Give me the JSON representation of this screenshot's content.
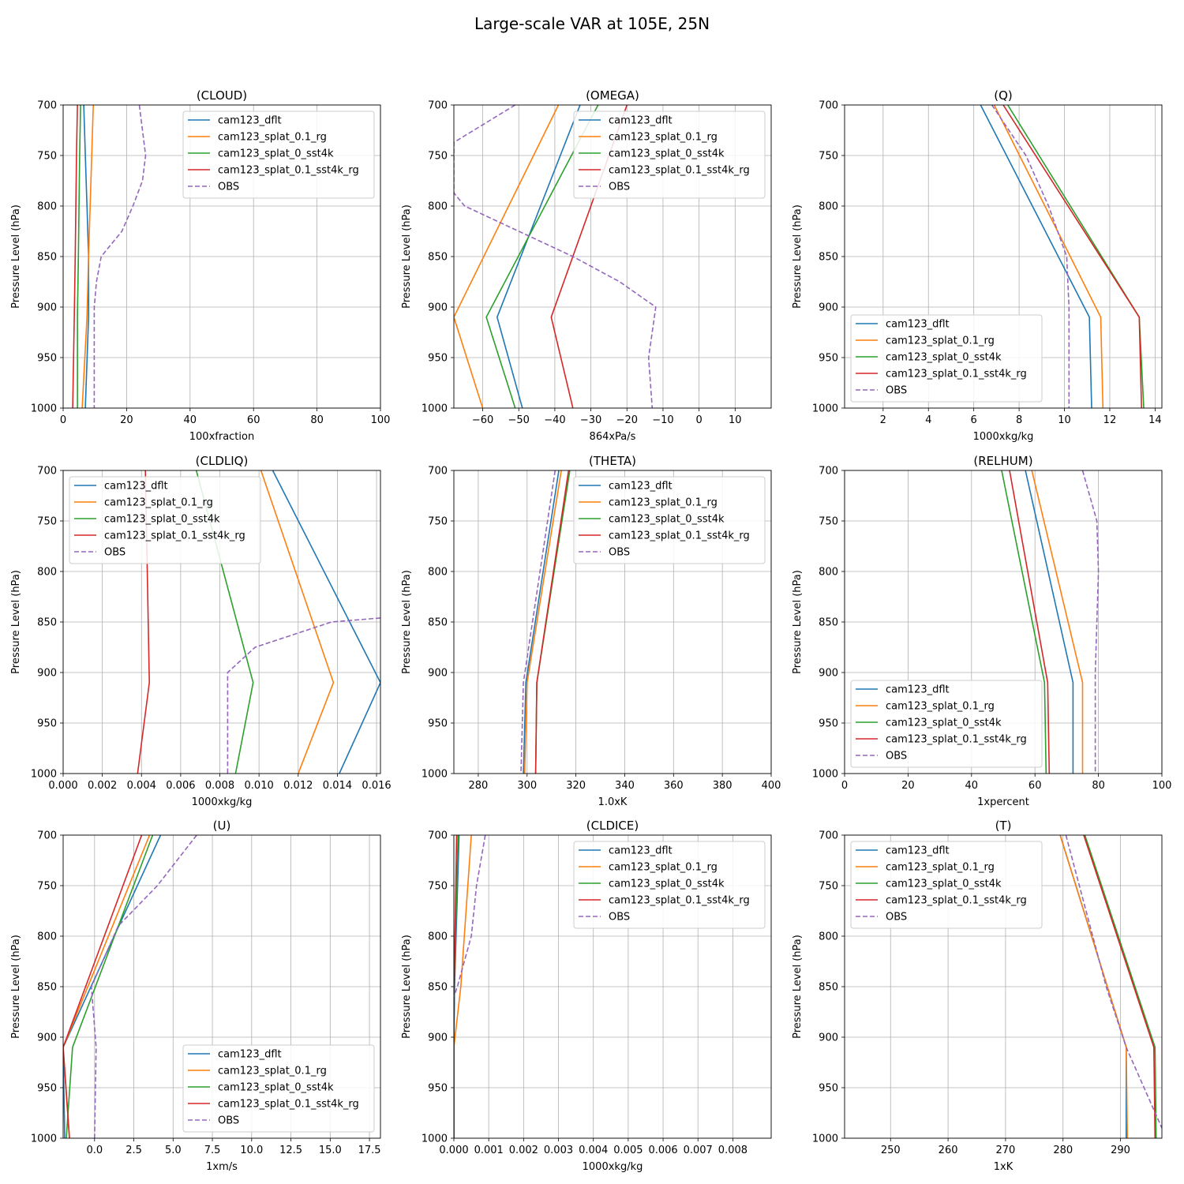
{
  "figure_title": "Large-scale VAR at 105E, 25N",
  "colors": {
    "cam123_dflt": "#1f77b4",
    "cam123_splat_0.1_rg": "#ff7f0e",
    "cam123_splat_0_sst4k": "#2ca02c",
    "cam123_splat_0.1_sst4k_rg": "#d62728",
    "OBS": "#9467bd"
  },
  "chart_data": [
    {
      "type": "line",
      "title": "(CLOUD)",
      "xlabel": "100xfraction",
      "ylabel": "Pressure Level (hPa)",
      "xlim": [
        0,
        100
      ],
      "xticks": [
        "0",
        "20",
        "40",
        "60",
        "80",
        "100"
      ],
      "xtick_values": [
        0,
        20,
        40,
        60,
        80,
        100
      ],
      "ylim": [
        700,
        1000
      ],
      "yticks": [
        "700",
        "750",
        "800",
        "850",
        "900",
        "950",
        "1000"
      ],
      "legend": "upper-right",
      "levels": [
        700,
        750,
        800,
        850,
        910,
        1000
      ],
      "series": [
        {
          "name": "cam123_dflt",
          "x": [
            6.5,
            7.0,
            7.5,
            8.0,
            8.0,
            7.0
          ]
        },
        {
          "name": "cam123_splat_0.1_rg",
          "x": [
            9.5,
            9.0,
            8.5,
            8.0,
            7.5,
            6.0
          ]
        },
        {
          "name": "cam123_splat_0_sst4k",
          "x": [
            5.5,
            5.2,
            5.0,
            4.8,
            4.5,
            4.5
          ]
        },
        {
          "name": "cam123_splat_0.1_sst4k_rg",
          "x": [
            4.5,
            4.2,
            4.0,
            3.8,
            3.5,
            3.0
          ]
        },
        {
          "name": "OBS",
          "dashed": true,
          "levels": [
            700,
            750,
            775,
            800,
            825,
            850,
            875,
            900,
            1000
          ],
          "x": [
            24,
            26,
            25,
            22,
            18.5,
            12,
            10.5,
            9.8,
            9.8
          ]
        }
      ]
    },
    {
      "type": "line",
      "title": "(OMEGA)",
      "xlabel": "864xPa/s",
      "ylabel": "Pressure Level (hPa)",
      "xlim": [
        -68,
        20
      ],
      "xticks": [
        "−60",
        "−50",
        "−40",
        "−30",
        "−20",
        "−10",
        "0",
        "10"
      ],
      "xtick_values": [
        -60,
        -50,
        -40,
        -30,
        -20,
        -10,
        0,
        10
      ],
      "ylim": [
        700,
        1000
      ],
      "yticks": [
        "700",
        "750",
        "800",
        "850",
        "900",
        "950",
        "1000"
      ],
      "legend": "upper-right",
      "levels": [
        700,
        910,
        1000
      ],
      "series": [
        {
          "name": "cam123_dflt",
          "x": [
            -33,
            -56,
            -49
          ]
        },
        {
          "name": "cam123_splat_0.1_rg",
          "x": [
            -39,
            -68,
            -60
          ]
        },
        {
          "name": "cam123_splat_0_sst4k",
          "x": [
            -28,
            -59,
            -51
          ]
        },
        {
          "name": "cam123_splat_0.1_sst4k_rg",
          "x": [
            -20,
            -41,
            -35
          ]
        },
        {
          "name": "OBS",
          "dashed": true,
          "levels": [
            700,
            737,
            787,
            800,
            850,
            875,
            900,
            950,
            1000
          ],
          "x": [
            -51,
            -68,
            -68,
            -65,
            -35,
            -22,
            -12,
            -14,
            -13
          ]
        }
      ]
    },
    {
      "type": "line",
      "title": "(Q)",
      "xlabel": "1000xkg/kg",
      "ylabel": "Pressure Level (hPa)",
      "xlim": [
        0.3,
        14.3
      ],
      "xticks": [
        "2",
        "4",
        "6",
        "8",
        "10",
        "12",
        "14"
      ],
      "xtick_values": [
        2,
        4,
        6,
        8,
        10,
        12,
        14
      ],
      "ylim": [
        700,
        1000
      ],
      "yticks": [
        "700",
        "750",
        "800",
        "850",
        "900",
        "950",
        "1000"
      ],
      "legend": "lower-left",
      "levels": [
        700,
        910,
        1000
      ],
      "series": [
        {
          "name": "cam123_dflt",
          "x": [
            6.3,
            11.1,
            11.2
          ]
        },
        {
          "name": "cam123_splat_0.1_rg",
          "x": [
            6.9,
            11.6,
            11.7
          ]
        },
        {
          "name": "cam123_splat_0_sst4k",
          "x": [
            7.5,
            13.3,
            13.5
          ]
        },
        {
          "name": "cam123_splat_0.1_sst4k_rg",
          "x": [
            7.3,
            13.3,
            13.4
          ]
        },
        {
          "name": "OBS",
          "dashed": true,
          "levels": [
            700,
            750,
            800,
            850,
            900,
            1000
          ],
          "x": [
            6.8,
            8.3,
            9.3,
            10.1,
            10.2,
            10.2
          ]
        }
      ]
    },
    {
      "type": "line",
      "title": "(CLDLIQ)",
      "xlabel": "1000xkg/kg",
      "ylabel": "Pressure Level (hPa)",
      "xlim": [
        0,
        0.0162
      ],
      "xticks": [
        "0.000",
        "0.002",
        "0.004",
        "0.006",
        "0.008",
        "0.010",
        "0.012",
        "0.014",
        "0.016"
      ],
      "xtick_values": [
        0,
        0.002,
        0.004,
        0.006,
        0.008,
        0.01,
        0.012,
        0.014,
        0.016
      ],
      "ylim": [
        700,
        1000
      ],
      "yticks": [
        "700",
        "750",
        "800",
        "850",
        "900",
        "950",
        "1000"
      ],
      "legend": "upper-left",
      "levels": [
        700,
        910,
        1000
      ],
      "series": [
        {
          "name": "cam123_dflt",
          "x": [
            0.0107,
            0.0162,
            0.0141
          ]
        },
        {
          "name": "cam123_splat_0.1_rg",
          "x": [
            0.0101,
            0.0138,
            0.012
          ]
        },
        {
          "name": "cam123_splat_0_sst4k",
          "x": [
            0.0068,
            0.0097,
            0.0088
          ]
        },
        {
          "name": "cam123_splat_0.1_sst4k_rg",
          "x": [
            0.0042,
            0.0044,
            0.0038
          ]
        },
        {
          "name": "OBS",
          "dashed": true,
          "levels": [
            846,
            850,
            875,
            900,
            1000
          ],
          "x": [
            0.0162,
            0.0137,
            0.0098,
            0.0084,
            0.0084
          ]
        }
      ]
    },
    {
      "type": "line",
      "title": "(THETA)",
      "xlabel": "1.0xK",
      "ylabel": "Pressure Level (hPa)",
      "xlim": [
        270,
        400
      ],
      "xticks": [
        "280",
        "300",
        "320",
        "340",
        "360",
        "380",
        "400"
      ],
      "xtick_values": [
        280,
        300,
        320,
        340,
        360,
        380,
        400
      ],
      "ylim": [
        700,
        1000
      ],
      "yticks": [
        "700",
        "750",
        "800",
        "850",
        "900",
        "950",
        "1000"
      ],
      "legend": "upper-right",
      "levels": [
        700,
        910,
        1000
      ],
      "series": [
        {
          "name": "cam123_dflt",
          "x": [
            313,
            299.5,
            298.5
          ]
        },
        {
          "name": "cam123_splat_0.1_rg",
          "x": [
            314,
            300,
            299
          ]
        },
        {
          "name": "cam123_splat_0_sst4k",
          "x": [
            317.5,
            304,
            303.5
          ]
        },
        {
          "name": "cam123_splat_0.1_sst4k_rg",
          "x": [
            317,
            304,
            303.5
          ]
        },
        {
          "name": "OBS",
          "dashed": true,
          "levels": [
            700,
            910,
            1000
          ],
          "x": [
            311.5,
            298.5,
            297.5
          ]
        }
      ]
    },
    {
      "type": "line",
      "title": "(RELHUM)",
      "xlabel": "1xpercent",
      "ylabel": "Pressure Level (hPa)",
      "xlim": [
        0,
        100
      ],
      "xticks": [
        "0",
        "20",
        "40",
        "60",
        "80",
        "100"
      ],
      "xtick_values": [
        0,
        20,
        40,
        60,
        80,
        100
      ],
      "ylim": [
        700,
        1000
      ],
      "yticks": [
        "700",
        "750",
        "800",
        "850",
        "900",
        "950",
        "1000"
      ],
      "legend": "lower-left",
      "levels": [
        700,
        910,
        1000
      ],
      "series": [
        {
          "name": "cam123_dflt",
          "x": [
            57,
            72,
            72
          ]
        },
        {
          "name": "cam123_splat_0.1_rg",
          "x": [
            59,
            75,
            75
          ]
        },
        {
          "name": "cam123_splat_0_sst4k",
          "x": [
            49.5,
            63,
            63.5
          ]
        },
        {
          "name": "cam123_splat_0.1_sst4k_rg",
          "x": [
            52,
            64,
            64.5
          ]
        },
        {
          "name": "OBS",
          "dashed": true,
          "levels": [
            700,
            750,
            800,
            850,
            900,
            1000
          ],
          "x": [
            75,
            79.5,
            80,
            79.5,
            79,
            79
          ]
        }
      ]
    },
    {
      "type": "line",
      "title": "(U)",
      "xlabel": "1xm/s",
      "ylabel": "Pressure Level (hPa)",
      "xlim": [
        -2,
        18.2
      ],
      "xticks": [
        "0.0",
        "2.5",
        "5.0",
        "7.5",
        "10.0",
        "12.5",
        "15.0",
        "17.5"
      ],
      "xtick_values": [
        0,
        2.5,
        5,
        7.5,
        10,
        12.5,
        15,
        17.5
      ],
      "ylim": [
        700,
        1000
      ],
      "yticks": [
        "700",
        "750",
        "800",
        "850",
        "900",
        "950",
        "1000"
      ],
      "legend": "lower-right",
      "levels": [
        700,
        910,
        1000
      ],
      "series": [
        {
          "name": "cam123_dflt",
          "x": [
            4.2,
            -2.0,
            -1.9
          ]
        },
        {
          "name": "cam123_splat_0.1_rg",
          "x": [
            3.5,
            -2.0,
            -1.6
          ]
        },
        {
          "name": "cam123_splat_0_sst4k",
          "x": [
            3.7,
            -1.4,
            -1.8
          ]
        },
        {
          "name": "cam123_splat_0.1_sst4k_rg",
          "x": [
            3.0,
            -2.0,
            -1.6
          ]
        },
        {
          "name": "OBS",
          "dashed": true,
          "levels": [
            700,
            750,
            790,
            850,
            910,
            1000
          ],
          "x": [
            6.5,
            4.0,
            1.5,
            -0.2,
            0.1,
            0.0
          ]
        }
      ]
    },
    {
      "type": "line",
      "title": "(CLDICE)",
      "xlabel": "1000xkg/kg",
      "ylabel": "Pressure Level (hPa)",
      "xlim": [
        0,
        0.0091
      ],
      "xticks": [
        "0.000",
        "0.001",
        "0.002",
        "0.003",
        "0.004",
        "0.005",
        "0.006",
        "0.007",
        "0.008"
      ],
      "xtick_values": [
        0,
        0.001,
        0.002,
        0.003,
        0.004,
        0.005,
        0.006,
        0.007,
        0.008
      ],
      "ylim": [
        700,
        1000
      ],
      "yticks": [
        "700",
        "750",
        "800",
        "850",
        "900",
        "950",
        "1000"
      ],
      "legend": "upper-right",
      "levels": [
        700,
        850,
        910,
        1000
      ],
      "series": [
        {
          "name": "cam123_dflt",
          "x": [
            0.00015,
            2e-05,
            0.0,
            0.0
          ]
        },
        {
          "name": "cam123_splat_0.1_rg",
          "x": [
            0.0005,
            0.0002,
            0.0,
            0.0
          ]
        },
        {
          "name": "cam123_splat_0_sst4k",
          "x": [
            0.00012,
            1e-05,
            0.0,
            0.0
          ]
        },
        {
          "name": "cam123_splat_0.1_sst4k_rg",
          "x": [
            8e-05,
            1e-05,
            0.0,
            0.0
          ]
        },
        {
          "name": "OBS",
          "dashed": true,
          "levels": [
            700,
            750,
            800,
            850,
            860
          ],
          "x": [
            0.0009,
            0.00065,
            0.0005,
            0.0001,
            0.0
          ]
        }
      ]
    },
    {
      "type": "line",
      "title": "(T)",
      "xlabel": "1xK",
      "ylabel": "Pressure Level (hPa)",
      "xlim": [
        242,
        297.2
      ],
      "xticks": [
        "250",
        "260",
        "270",
        "280",
        "290"
      ],
      "xtick_values": [
        250,
        260,
        270,
        280,
        290
      ],
      "ylim": [
        700,
        1000
      ],
      "yticks": [
        "700",
        "750",
        "800",
        "850",
        "900",
        "950",
        "1000"
      ],
      "legend": "upper-left",
      "levels": [
        700,
        910,
        1000
      ],
      "series": [
        {
          "name": "cam123_dflt",
          "x": [
            279.5,
            291,
            291
          ]
        },
        {
          "name": "cam123_splat_0.1_rg",
          "x": [
            279.5,
            291,
            291.2
          ]
        },
        {
          "name": "cam123_splat_0_sst4k",
          "x": [
            283.8,
            296,
            296.2
          ]
        },
        {
          "name": "cam123_splat_0.1_sst4k_rg",
          "x": [
            283.6,
            295.8,
            296
          ]
        },
        {
          "name": "OBS",
          "dashed": true,
          "levels": [
            700,
            850,
            910,
            990
          ],
          "x": [
            280.5,
            287.5,
            291,
            297.2
          ]
        }
      ]
    }
  ]
}
